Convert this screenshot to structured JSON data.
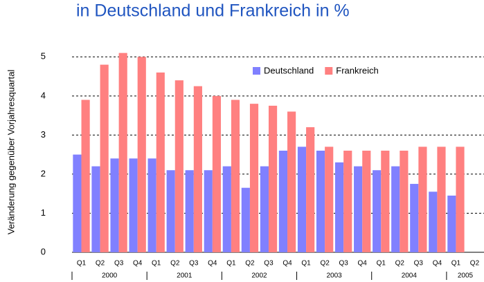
{
  "chart_data": {
    "type": "bar",
    "title": "in Deutschland und Frankreich  in %",
    "y_label": "Veränderung gegenüber Vorjahresquartal",
    "categories": [
      "Q1",
      "Q2",
      "Q3",
      "Q4",
      "Q1",
      "Q2",
      "Q3",
      "Q4",
      "Q1",
      "Q2",
      "Q3",
      "Q4",
      "Q1",
      "Q2",
      "Q3",
      "Q4",
      "Q1",
      "Q2",
      "Q3",
      "Q4",
      "Q1",
      "Q2"
    ],
    "years": [
      "2000",
      "2001",
      "2002",
      "2003",
      "2004",
      "2005"
    ],
    "series": [
      {
        "name": "Deutschland",
        "color": "#8080ff",
        "values": [
          2.5,
          2.2,
          2.4,
          2.4,
          2.4,
          2.1,
          2.1,
          2.1,
          2.2,
          1.65,
          2.2,
          2.6,
          2.7,
          2.6,
          2.3,
          2.2,
          2.1,
          2.2,
          1.75,
          1.55,
          1.45,
          null
        ]
      },
      {
        "name": "Frankreich",
        "color": "#ff8080",
        "values": [
          3.9,
          4.8,
          5.1,
          5.0,
          4.6,
          4.4,
          4.25,
          4.0,
          3.9,
          3.8,
          3.75,
          3.6,
          3.2,
          2.7,
          2.6,
          2.6,
          2.6,
          2.6,
          2.7,
          2.7,
          2.7,
          null
        ]
      }
    ],
    "ylim": [
      0,
      5.5
    ],
    "yticks": [
      0,
      1,
      2,
      3,
      4,
      5
    ],
    "grid": true,
    "legend": "top-right"
  }
}
